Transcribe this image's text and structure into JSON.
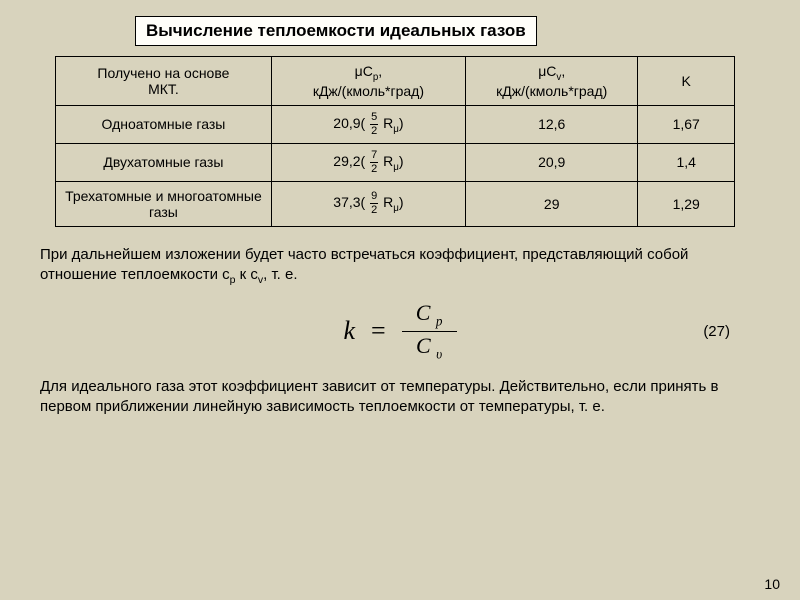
{
  "title": "Вычисление теплоемкости идеальных газов",
  "table": {
    "head": {
      "c1a": "Получено на основе",
      "c1b": "МКТ.",
      "c2a": "μC",
      "c2a_sub": "p",
      "c2a_tail": ",",
      "c2b": "кДж/(кмоль*град)",
      "c3a": "μC",
      "c3a_sub": "v",
      "c3a_tail": ",",
      "c3b": "кДж/(кмоль*град)",
      "c4": "K"
    },
    "r1": {
      "c1": "Одноатомные газы",
      "c2_pre": "20,9( ",
      "c2_frac_n": "5",
      "c2_frac_d": "2",
      "c2_post": " R",
      "c2_sub": "μ",
      "c2_tail": ")",
      "c3": "12,6",
      "c4": "1,67"
    },
    "r2": {
      "c1": "Двухатомные газы",
      "c2_pre": "29,2( ",
      "c2_frac_n": "7",
      "c2_frac_d": "2",
      "c2_post": " R",
      "c2_sub": "μ",
      "c2_tail": ")",
      "c3": "20,9",
      "c4": "1,4"
    },
    "r3": {
      "c1": "Трехатомные и многоатомные газы",
      "c2_pre": "37,3( ",
      "c2_frac_n": "9",
      "c2_frac_d": "2",
      "c2_post": " R",
      "c2_sub": "μ",
      "c2_tail": ")",
      "c3": "29",
      "c4": "1,29"
    }
  },
  "para1_a": "При дальнейшем изложении будет часто встречаться коэффициент, представляющий собой отношение теплоемкости c",
  "para1_sub1": "p",
  "para1_b": " к c",
  "para1_sub2": "v",
  "para1_c": ", т. е.",
  "eq": {
    "lhs": "k",
    "eqs": "=",
    "num_base": "C",
    "num_sub": "p",
    "den_base": "C",
    "den_sub": "υ",
    "number": "(27)"
  },
  "para2": "Для идеального газа этот коэффициент зависит от температуры. Действительно, если принять в первом приближении линейную зависимость теплоемкости от температуры, т. е.",
  "page_number": "10"
}
